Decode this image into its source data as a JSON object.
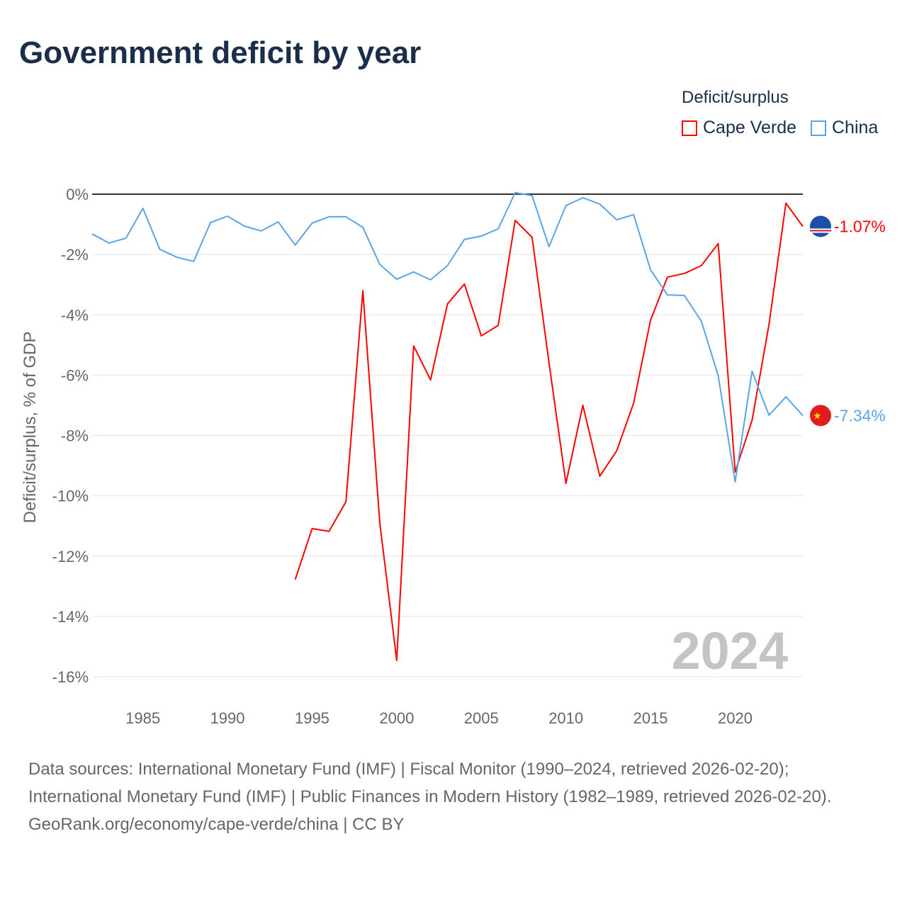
{
  "title": "Government deficit by year",
  "legend": {
    "title": "Deficit/surplus",
    "items": [
      {
        "name": "Cape Verde",
        "color": "#ff0000"
      },
      {
        "name": "China",
        "color": "#5ba4e8"
      }
    ]
  },
  "year_watermark": "2024",
  "sources": {
    "line1": "Data sources: International Monetary Fund (IMF) | Fiscal Monitor (1990–2024, retrieved 2026-02-20); International Monetary Fund (IMF) | Public Finances in Modern History (1982–1989, retrieved 2026-02-20).",
    "line2": "GeoRank.org/economy/cape-verde/china | CC BY"
  },
  "chart_data": {
    "type": "line",
    "title": "Government deficit by year",
    "xlabel": "",
    "ylabel": "Deficit/surplus, % of GDP",
    "xlim": [
      1982,
      2024
    ],
    "ylim": [
      -16,
      0
    ],
    "xticks": [
      1985,
      1990,
      1995,
      2000,
      2005,
      2010,
      2015,
      2020
    ],
    "yticks": [
      0,
      -2,
      -4,
      -6,
      -8,
      -10,
      -12,
      -14,
      -16
    ],
    "ytick_labels": [
      "0%",
      "-2%",
      "-4%",
      "-6%",
      "-8%",
      "-10%",
      "-12%",
      "-14%",
      "-16%"
    ],
    "series": [
      {
        "name": "Cape Verde",
        "color": "#ff0000",
        "end_label": "-1.07%",
        "x": [
          1994,
          1995,
          1996,
          1997,
          1998,
          1999,
          2000,
          2001,
          2002,
          2003,
          2004,
          2005,
          2006,
          2007,
          2008,
          2009,
          2010,
          2011,
          2012,
          2013,
          2014,
          2015,
          2016,
          2017,
          2018,
          2019,
          2020,
          2021,
          2022,
          2023,
          2024
        ],
        "y": [
          -12.78,
          -11.09,
          -11.18,
          -10.2,
          -3.2,
          -10.9,
          -15.46,
          -5.03,
          -6.16,
          -3.64,
          -2.98,
          -4.7,
          -4.35,
          -0.87,
          -1.43,
          -5.59,
          -9.59,
          -7.0,
          -9.35,
          -8.51,
          -6.93,
          -4.18,
          -2.75,
          -2.63,
          -2.37,
          -1.64,
          -9.21,
          -7.5,
          -4.32,
          -0.3,
          -1.07
        ]
      },
      {
        "name": "China",
        "color": "#5ba4e8",
        "end_label": "-7.34%",
        "x": [
          1982,
          1983,
          1984,
          1985,
          1986,
          1987,
          1988,
          1989,
          1990,
          1991,
          1992,
          1993,
          1994,
          1995,
          1996,
          1997,
          1998,
          1999,
          2000,
          2001,
          2002,
          2003,
          2004,
          2005,
          2006,
          2007,
          2008,
          2009,
          2010,
          2011,
          2012,
          2013,
          2014,
          2015,
          2016,
          2017,
          2018,
          2019,
          2020,
          2021,
          2022,
          2023,
          2024
        ],
        "y": [
          -1.32,
          -1.62,
          -1.46,
          -0.47,
          -1.83,
          -2.09,
          -2.23,
          -0.94,
          -0.73,
          -1.06,
          -1.22,
          -0.92,
          -1.69,
          -0.96,
          -0.75,
          -0.75,
          -1.1,
          -2.33,
          -2.82,
          -2.58,
          -2.84,
          -2.37,
          -1.5,
          -1.39,
          -1.15,
          0.05,
          -0.05,
          -1.74,
          -0.38,
          -0.12,
          -0.33,
          -0.85,
          -0.68,
          -2.51,
          -3.34,
          -3.36,
          -4.21,
          -6.02,
          -9.54,
          -5.87,
          -7.33,
          -6.72,
          -7.34
        ]
      }
    ]
  }
}
